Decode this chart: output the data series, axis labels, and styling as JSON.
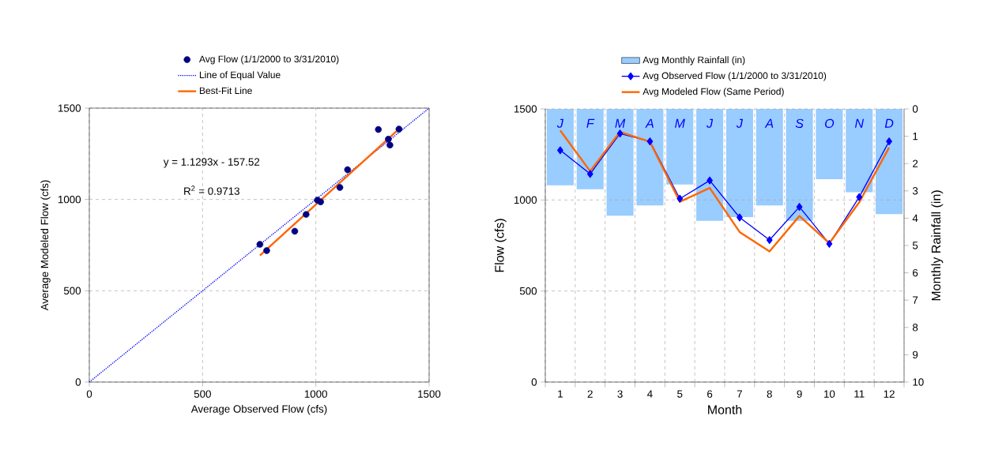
{
  "chart_data": [
    {
      "type": "scatter",
      "xlabel": "Average Observed Flow (cfs)",
      "ylabel": "Average Modeled Flow (cfs)",
      "xlim": [
        0,
        1500
      ],
      "ylim": [
        0,
        1500
      ],
      "xticks": [
        0,
        500,
        1000,
        1500
      ],
      "yticks": [
        0,
        500,
        1000,
        1500
      ],
      "grid": true,
      "legend": "top",
      "annotations": [
        "y = 1.1293x - 157.52",
        "R$^{2}$ = 0.9713"
      ],
      "series": [
        {
          "name": "Avg Flow  (1/1/2000 to 3/31/2010)",
          "type": "scatter",
          "marker": "circle",
          "color": "#000080",
          "x": [
            753,
            783,
            907,
            957,
            1007,
            1021,
            1106,
            1140,
            1276,
            1320,
            1327,
            1367
          ],
          "values": [
            754,
            720,
            826,
            918,
            996,
            987,
            1066,
            1163,
            1383,
            1330,
            1298,
            1385
          ]
        },
        {
          "name": "Line of Equal Value",
          "type": "line",
          "line_style": "dotted",
          "marker": "none",
          "color": "#0000ff",
          "x": [
            0,
            1500
          ],
          "values": [
            0,
            1500
          ]
        },
        {
          "name": "Best-Fit Line",
          "type": "line",
          "line_style": "solid",
          "marker": "none",
          "color": "#ff6600",
          "x": [
            753,
            1367
          ],
          "values": [
            693,
            1386
          ]
        }
      ]
    },
    {
      "type": "line",
      "categories": [
        "1",
        "2",
        "3",
        "4",
        "5",
        "6",
        "7",
        "8",
        "9",
        "10",
        "11",
        "12"
      ],
      "xlabel": "Month",
      "ylabel": "Flow (cfs)",
      "y2label": "Monthly Rainfall (in)",
      "ylim": [
        0,
        1500
      ],
      "yticks": [
        0,
        500,
        1000,
        1500
      ],
      "y2lim": [
        10,
        0
      ],
      "y2ticks": [
        0,
        1,
        2,
        3,
        4,
        5,
        6,
        7,
        8,
        9,
        10
      ],
      "grid": true,
      "legend": "top",
      "series": [
        {
          "name": "Avg Monthly Rainfall (in)",
          "type": "bar",
          "axis": "y2",
          "color": "#99ccff",
          "values": [
            2.8,
            2.94,
            3.91,
            3.53,
            2.77,
            4.1,
            3.96,
            3.53,
            4.1,
            2.57,
            3.05,
            3.85
          ],
          "value_labels": [
            "J",
            "F",
            "M",
            "A",
            "M",
            "J",
            "J",
            "A",
            "S",
            "O",
            "N",
            "D"
          ]
        },
        {
          "name": "Avg Observed Flow  (1/1/2000 to 3/31/2010)",
          "type": "line",
          "marker": "diamond",
          "line_style": "solid",
          "color": "#0000ff",
          "values": [
            1273,
            1143,
            1365,
            1322,
            1007,
            1107,
            904,
            780,
            962,
            759,
            1016,
            1322
          ]
        },
        {
          "name": "Avg Modeled Flow  (Same Period)",
          "type": "line",
          "marker": "none",
          "line_style": "solid",
          "color": "#ff6600",
          "values": [
            1382,
            1158,
            1374,
            1319,
            990,
            1066,
            824,
            717,
            912,
            763,
            987,
            1288
          ]
        }
      ]
    }
  ]
}
